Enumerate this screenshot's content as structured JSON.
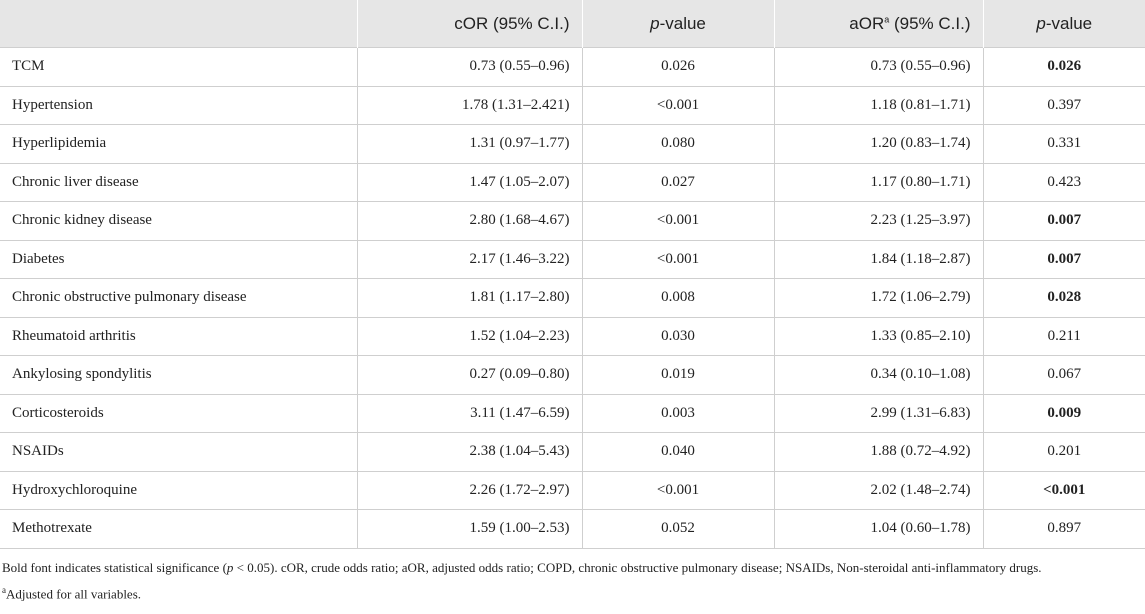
{
  "table": {
    "header": {
      "cor": "cOR (95% C.I.)",
      "p_italic": "p",
      "p_rest": "-value",
      "aor": "aOR",
      "aor_sup": "a",
      "aor_rest": " (95% C.I.)"
    },
    "rows": [
      {
        "label": "TCM",
        "cor": "0.73 (0.55–0.96)",
        "cor_p": "0.026",
        "aor": "0.73 (0.55–0.96)",
        "aor_p": "0.026",
        "significant": true
      },
      {
        "label": "Hypertension",
        "cor": "1.78 (1.31–2.421)",
        "cor_p": "<0.001",
        "aor": "1.18 (0.81–1.71)",
        "aor_p": "0.397",
        "significant": false
      },
      {
        "label": "Hyperlipidemia",
        "cor": "1.31 (0.97–1.77)",
        "cor_p": "0.080",
        "aor": "1.20 (0.83–1.74)",
        "aor_p": "0.331",
        "significant": false
      },
      {
        "label": "Chronic liver disease",
        "cor": "1.47 (1.05–2.07)",
        "cor_p": "0.027",
        "aor": "1.17 (0.80–1.71)",
        "aor_p": "0.423",
        "significant": false
      },
      {
        "label": "Chronic kidney disease",
        "cor": "2.80 (1.68–4.67)",
        "cor_p": "<0.001",
        "aor": "2.23 (1.25–3.97)",
        "aor_p": "0.007",
        "significant": true
      },
      {
        "label": "Diabetes",
        "cor": "2.17 (1.46–3.22)",
        "cor_p": "<0.001",
        "aor": "1.84 (1.18–2.87)",
        "aor_p": "0.007",
        "significant": true
      },
      {
        "label": "Chronic obstructive pulmonary disease",
        "cor": "1.81 (1.17–2.80)",
        "cor_p": "0.008",
        "aor": "1.72 (1.06–2.79)",
        "aor_p": "0.028",
        "significant": true
      },
      {
        "label": "Rheumatoid arthritis",
        "cor": "1.52 (1.04–2.23)",
        "cor_p": "0.030",
        "aor": "1.33 (0.85–2.10)",
        "aor_p": "0.211",
        "significant": false
      },
      {
        "label": "Ankylosing spondylitis",
        "cor": "0.27 (0.09–0.80)",
        "cor_p": "0.019",
        "aor": "0.34 (0.10–1.08)",
        "aor_p": "0.067",
        "significant": false
      },
      {
        "label": "Corticosteroids",
        "cor": "3.11 (1.47–6.59)",
        "cor_p": "0.003",
        "aor": "2.99 (1.31–6.83)",
        "aor_p": "0.009",
        "significant": true
      },
      {
        "label": "NSAIDs",
        "cor": "2.38 (1.04–5.43)",
        "cor_p": "0.040",
        "aor": "1.88 (0.72–4.92)",
        "aor_p": "0.201",
        "significant": false
      },
      {
        "label": "Hydroxychloroquine",
        "cor": "2.26 (1.72–2.97)",
        "cor_p": "<0.001",
        "aor": "2.02 (1.48–2.74)",
        "aor_p": "<0.001",
        "significant": true
      },
      {
        "label": "Methotrexate",
        "cor": "1.59 (1.00–2.53)",
        "cor_p": "0.052",
        "aor": "1.04 (0.60–1.78)",
        "aor_p": "0.897",
        "significant": false
      }
    ]
  },
  "footnote": {
    "part1": "Bold font indicates statistical significance (",
    "p": "p",
    "part2": " < 0.05). cOR, crude odds ratio; aOR, adjusted odds ratio; COPD, chronic obstructive pulmonary disease; NSAIDs, Non-steroidal anti-inflammatory drugs.",
    "sup": "a",
    "note": "Adjusted for all variables."
  }
}
